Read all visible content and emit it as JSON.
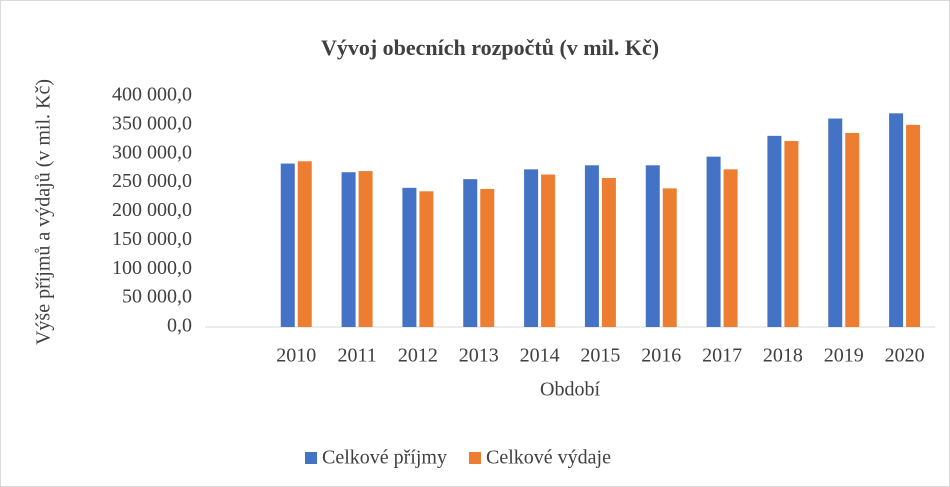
{
  "chart_data": {
    "type": "bar",
    "title": "Vývoj obecních rozpočtů (v mil. Kč)",
    "x_label": "Období",
    "y_label": "Výše příjmů a výdajů (v mil. Kč)",
    "categories": [
      null,
      "2010",
      "2011",
      "2012",
      "2013",
      "2014",
      "2015",
      "2016",
      "2017",
      "2018",
      "2019",
      "2020"
    ],
    "series": [
      {
        "name": "Celkové příjmy",
        "color": "#4472c4",
        "values": [
          null,
          283000,
          268000,
          241000,
          256000,
          273000,
          280000,
          280000,
          295000,
          331000,
          361000,
          370000
        ]
      },
      {
        "name": "Celkové výdaje",
        "color": "#ed7d31",
        "values": [
          null,
          287000,
          270000,
          235000,
          239000,
          264000,
          258000,
          240000,
          273000,
          322000,
          336000,
          350000
        ]
      }
    ],
    "ylim": [
      0,
      400000
    ],
    "yticks": [
      {
        "value": 0,
        "label": "0,0"
      },
      {
        "value": 50000,
        "label": "50 000,0"
      },
      {
        "value": 100000,
        "label": "100 000,0"
      },
      {
        "value": 150000,
        "label": "150 000,0"
      },
      {
        "value": 200000,
        "label": "200 000,0"
      },
      {
        "value": 250000,
        "label": "250 000,0"
      },
      {
        "value": 300000,
        "label": "300 000,0"
      },
      {
        "value": 350000,
        "label": "350 000,0"
      },
      {
        "value": 400000,
        "label": "400 000,0"
      }
    ],
    "grid": false,
    "legend": "bottom"
  }
}
